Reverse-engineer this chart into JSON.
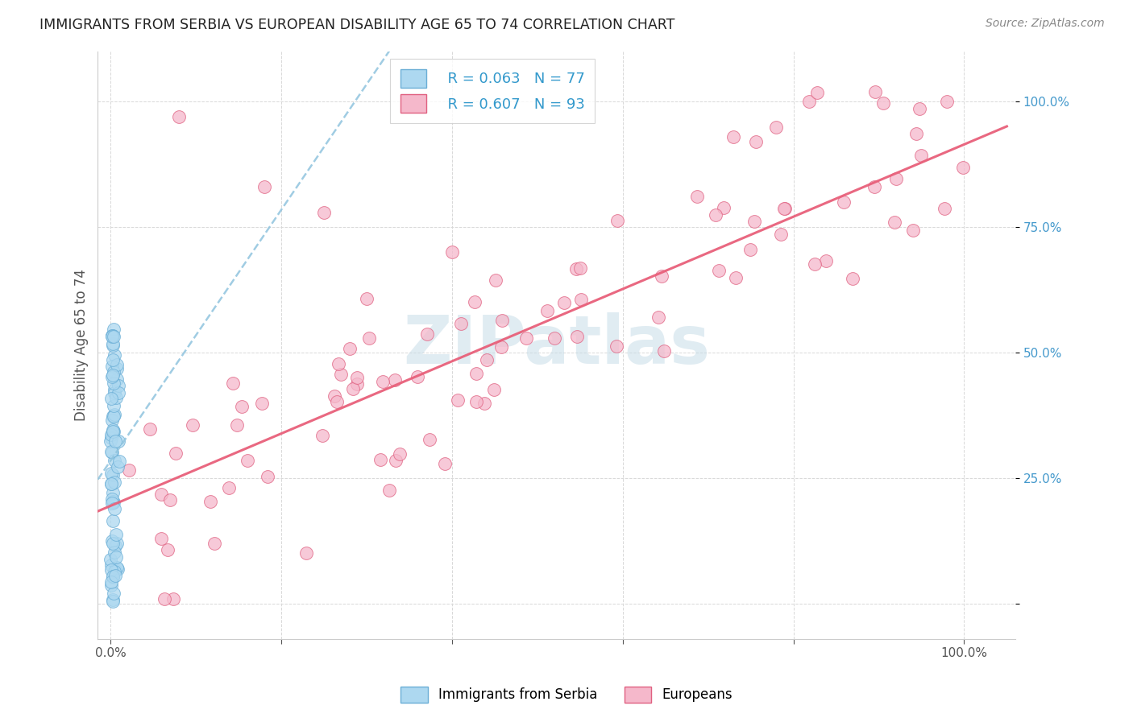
{
  "title": "IMMIGRANTS FROM SERBIA VS EUROPEAN DISABILITY AGE 65 TO 74 CORRELATION CHART",
  "source": "Source: ZipAtlas.com",
  "ylabel": "Disability Age 65 to 74",
  "legend_label1": "Immigrants from Serbia",
  "legend_label2": "Europeans",
  "r1": 0.063,
  "n1": 77,
  "r2": 0.607,
  "n2": 93,
  "serbia_color": "#add8f0",
  "europe_color": "#f5b8cb",
  "serbia_edge": "#6aaed6",
  "europe_edge": "#e06080",
  "trend1_color": "#90c4de",
  "trend2_color": "#e8607a",
  "watermark_text": "ZIPatlas",
  "watermark_color": "#c8dde8",
  "background_color": "#ffffff",
  "grid_color": "#d8d8d8",
  "title_color": "#222222",
  "source_color": "#888888",
  "yaxis_label_color": "#555555",
  "yaxis_tick_color": "#4499cc",
  "xaxis_tick_color": "#555555",
  "xlim": [
    -0.015,
    1.06
  ],
  "ylim": [
    -0.07,
    1.1
  ],
  "serbia_trend_intercept": 0.285,
  "serbia_trend_slope": 2.5,
  "europe_trend_intercept": 0.195,
  "europe_trend_slope": 0.72
}
